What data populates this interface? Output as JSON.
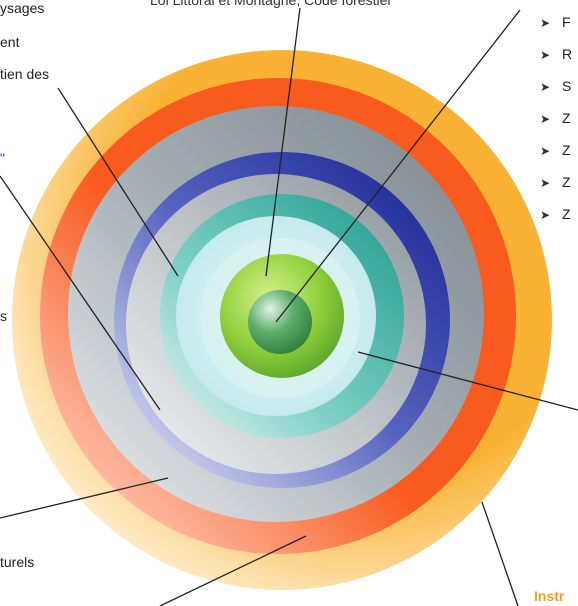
{
  "top_caption": "Loi Littoral et Montagne, Code forestier",
  "left_labels": {
    "l1": "ysages",
    "l2": "ent",
    "l3": "tien des",
    "l4": "\"",
    "l5": "s",
    "l6": "turels"
  },
  "right_list": [
    {
      "arrow": "➤",
      "text": "F"
    },
    {
      "arrow": "➤",
      "text": "R"
    },
    {
      "arrow": "➤",
      "text": "S"
    },
    {
      "arrow": "➤",
      "text": "Z"
    },
    {
      "arrow": "➤",
      "text": "Z"
    },
    {
      "arrow": "➤",
      "text": "Z"
    },
    {
      "arrow": "➤",
      "text": "Z"
    }
  ],
  "bottom_label": "Instr",
  "colors": {
    "ring_yellow": "#f9b233",
    "ring_red": "#f95a1e",
    "ring_gray": "#9aa3ab",
    "ring_navy": "#1c2a9e",
    "ring_teal": "#2ba79a",
    "ring_lightcyan": "#cfeeee",
    "ring_green": "#8fcf3a",
    "core_green": "#2f8a3a",
    "label_blue": "#2a4fd0",
    "label_orange": "#f2a01c"
  }
}
